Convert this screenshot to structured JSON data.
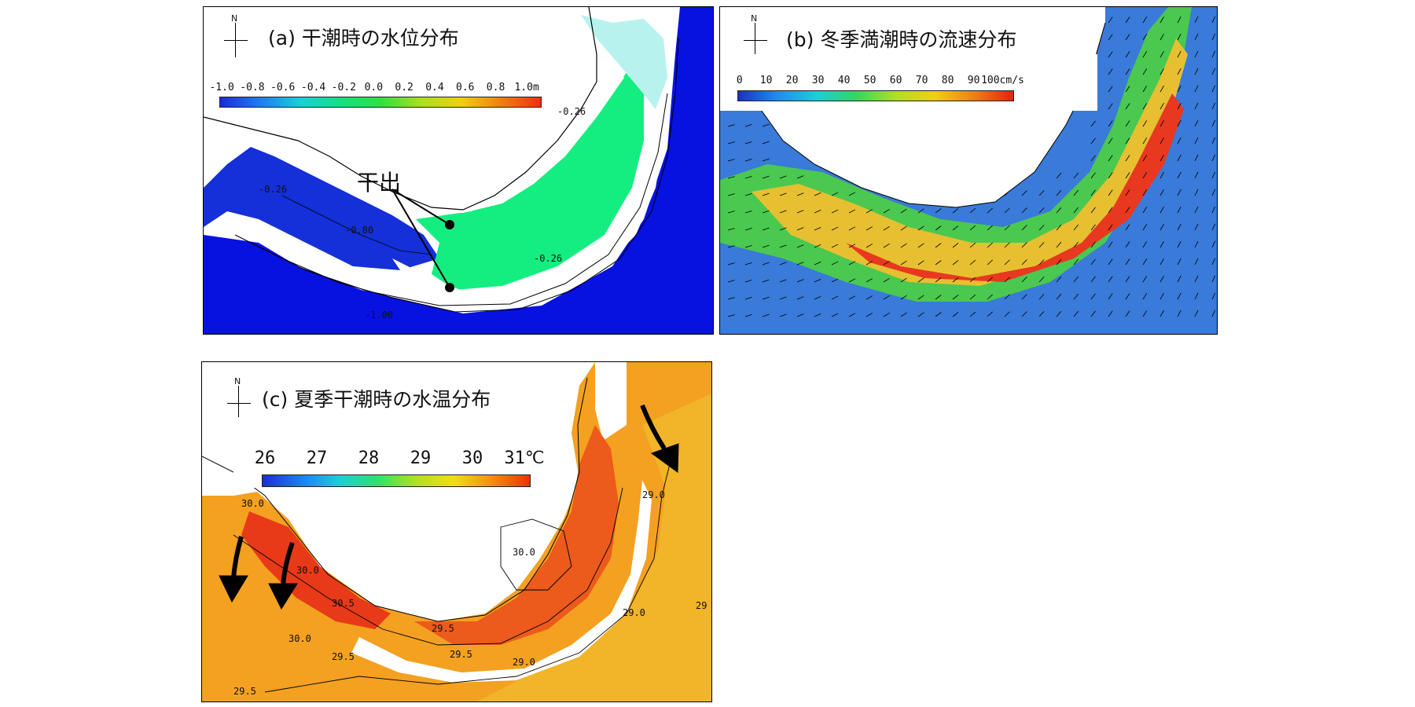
{
  "panel_a": {
    "title": "(a) 干潮時の水位分布",
    "colorbar_ticks": [
      "-1.0",
      "-0.8",
      "-0.6",
      "-0.4",
      "-0.2",
      "0.0",
      "0.2",
      "0.4",
      "0.6",
      "0.8",
      "1.0m"
    ],
    "north_label": "N",
    "callout": "干出",
    "contour_labels": [
      "-0.26",
      "-0.26",
      "-0.80",
      "-0.26",
      "-1.00"
    ],
    "colors": {
      "low": "#0a14e6",
      "high": "#ff3a10",
      "mid": "#10e87a"
    }
  },
  "panel_b": {
    "title": "(b) 冬季満潮時の流速分布",
    "colorbar_ticks": [
      "0",
      "10",
      "20",
      "30",
      "40",
      "50",
      "60",
      "70",
      "80",
      "90",
      "100cm/s"
    ],
    "north_label": "N"
  },
  "panel_c": {
    "title": "(c) 夏季干潮時の水温分布",
    "colorbar_ticks": [
      "26",
      "27",
      "28",
      "29",
      "30",
      "31℃"
    ],
    "north_label": "N",
    "contour_labels": [
      "30.0",
      "30.0",
      "30.5",
      "30.0",
      "29.5",
      "29.0",
      "29.0",
      "29.0",
      "29.5",
      "30.0",
      "29.5",
      "29.5",
      "29"
    ]
  }
}
